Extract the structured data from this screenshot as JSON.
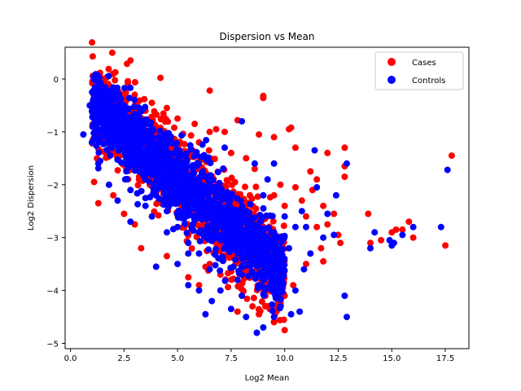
{
  "chart_data": {
    "type": "scatter",
    "title": "Dispersion vs Mean",
    "xlabel": "Log2 Mean",
    "ylabel": "Log2 Dispersion",
    "xlim": [
      -0.25,
      18.6
    ],
    "ylim": [
      -5.1,
      0.6
    ],
    "xticks": [
      0,
      2.5,
      5,
      7.5,
      10,
      12.5,
      15,
      17.5
    ],
    "xtick_labels": [
      "0.0",
      "2.5",
      "5.0",
      "7.5",
      "10.0",
      "12.5",
      "15.0",
      "17.5"
    ],
    "yticks": [
      0,
      -1,
      -2,
      -3,
      -4,
      -5
    ],
    "ytick_labels": [
      "0",
      "−1",
      "−2",
      "−3",
      "−4",
      "−5"
    ],
    "grid": false,
    "legend": {
      "position": "top-right",
      "entries": [
        "Cases",
        "Controls"
      ]
    },
    "series": [
      {
        "name": "Cases",
        "color": "#ff0000",
        "points": [
          [
            2.8,
            0.35
          ],
          [
            4.2,
            0.02
          ],
          [
            6.5,
            -0.22
          ],
          [
            9.0,
            -0.32
          ],
          [
            9.0,
            -0.36
          ],
          [
            7.8,
            -0.78
          ],
          [
            10.2,
            -0.95
          ],
          [
            10.3,
            -0.92
          ],
          [
            8.8,
            -1.05
          ],
          [
            9.5,
            -1.1
          ],
          [
            6.5,
            -1.0
          ],
          [
            6.8,
            -0.95
          ],
          [
            7.2,
            -1.0
          ],
          [
            5.8,
            -0.85
          ],
          [
            5.0,
            -0.75
          ],
          [
            4.5,
            -0.55
          ],
          [
            3.8,
            -0.45
          ],
          [
            3.0,
            -0.3
          ],
          [
            3.5,
            -0.6
          ],
          [
            6.0,
            -1.2
          ],
          [
            7.5,
            -1.4
          ],
          [
            8.2,
            -1.5
          ],
          [
            8.6,
            -1.7
          ],
          [
            10.5,
            -1.3
          ],
          [
            11.2,
            -1.75
          ],
          [
            12.0,
            -1.4
          ],
          [
            12.8,
            -1.3
          ],
          [
            12.8,
            -1.65
          ],
          [
            12.8,
            -1.85
          ],
          [
            11.5,
            -1.9
          ],
          [
            11.3,
            -2.1
          ],
          [
            10.5,
            -2.05
          ],
          [
            9.8,
            -2.0
          ],
          [
            9.5,
            -2.2
          ],
          [
            10.0,
            -2.4
          ],
          [
            10.8,
            -2.3
          ],
          [
            11.8,
            -2.4
          ],
          [
            12.3,
            -2.55
          ],
          [
            12.0,
            -2.75
          ],
          [
            11.5,
            -2.8
          ],
          [
            11.0,
            -2.6
          ],
          [
            12.5,
            -2.95
          ],
          [
            12.6,
            -3.1
          ],
          [
            11.7,
            -3.2
          ],
          [
            11.8,
            -3.45
          ],
          [
            11.0,
            -3.5
          ],
          [
            10.4,
            -3.9
          ],
          [
            10.0,
            -4.1
          ],
          [
            9.7,
            -4.2
          ],
          [
            9.3,
            -4.35
          ],
          [
            8.8,
            -4.45
          ],
          [
            9.5,
            -4.6
          ],
          [
            10.0,
            -4.75
          ],
          [
            8.5,
            -4.3
          ],
          [
            7.8,
            -4.4
          ],
          [
            13.9,
            -2.55
          ],
          [
            14.0,
            -3.1
          ],
          [
            14.5,
            -3.05
          ],
          [
            15.0,
            -2.9
          ],
          [
            15.2,
            -2.85
          ],
          [
            15.5,
            -2.85
          ],
          [
            15.8,
            -2.7
          ],
          [
            16.0,
            -3.0
          ],
          [
            17.8,
            -1.45
          ],
          [
            17.5,
            -3.15
          ],
          [
            1.3,
            -2.35
          ],
          [
            3.3,
            -3.2
          ],
          [
            4.5,
            -3.35
          ],
          [
            5.5,
            -3.75
          ],
          [
            6.0,
            -3.9
          ],
          [
            6.5,
            -3.5
          ],
          [
            7.0,
            -3.7
          ],
          [
            8.0,
            -3.3
          ],
          [
            8.8,
            -3.05
          ],
          [
            9.2,
            -2.6
          ],
          [
            8.5,
            -2.4
          ],
          [
            7.5,
            -2.7
          ],
          [
            2.5,
            -1.6
          ],
          [
            3.2,
            -1.9
          ],
          [
            4.0,
            -2.2
          ],
          [
            5.2,
            -2.5
          ],
          [
            6.2,
            -2.8
          ],
          [
            2.0,
            -2.2
          ],
          [
            2.5,
            -2.55
          ],
          [
            3.0,
            -2.75
          ]
        ]
      },
      {
        "name": "Controls",
        "color": "#0000ff",
        "points": [
          [
            0.6,
            -1.05
          ],
          [
            0.9,
            -0.5
          ],
          [
            1.2,
            -0.3
          ],
          [
            1.5,
            -0.2
          ],
          [
            1.8,
            -0.35
          ],
          [
            1.0,
            -1.2
          ],
          [
            1.3,
            -1.6
          ],
          [
            1.8,
            -2.0
          ],
          [
            2.2,
            -2.3
          ],
          [
            2.8,
            -2.7
          ],
          [
            8.0,
            -0.8
          ],
          [
            11.4,
            -1.35
          ],
          [
            12.9,
            -1.6
          ],
          [
            11.5,
            -2.05
          ],
          [
            12.4,
            -2.2
          ],
          [
            12.0,
            -2.55
          ],
          [
            12.3,
            -2.95
          ],
          [
            11.8,
            -3.0
          ],
          [
            11.2,
            -3.3
          ],
          [
            10.9,
            -3.6
          ],
          [
            10.5,
            -4.0
          ],
          [
            10.7,
            -4.4
          ],
          [
            10.3,
            -4.45
          ],
          [
            9.8,
            -4.3
          ],
          [
            9.5,
            -4.5
          ],
          [
            8.7,
            -4.8
          ],
          [
            9.0,
            -4.7
          ],
          [
            8.2,
            -4.5
          ],
          [
            7.5,
            -4.35
          ],
          [
            6.3,
            -4.45
          ],
          [
            12.8,
            -4.1
          ],
          [
            12.9,
            -4.5
          ],
          [
            14.0,
            -3.2
          ],
          [
            14.2,
            -2.9
          ],
          [
            14.9,
            -3.05
          ],
          [
            15.0,
            -3.15
          ],
          [
            15.1,
            -3.1
          ],
          [
            15.5,
            -2.95
          ],
          [
            16.0,
            -2.8
          ],
          [
            17.3,
            -2.8
          ],
          [
            17.6,
            -1.72
          ],
          [
            4.0,
            -3.55
          ],
          [
            5.0,
            -3.5
          ],
          [
            5.5,
            -3.9
          ],
          [
            6.0,
            -4.0
          ],
          [
            6.6,
            -4.2
          ],
          [
            7.0,
            -4.0
          ],
          [
            7.8,
            -3.8
          ],
          [
            8.5,
            -3.5
          ],
          [
            9.2,
            -3.25
          ],
          [
            9.5,
            -2.9
          ],
          [
            10.0,
            -2.6
          ],
          [
            9.0,
            -2.2
          ],
          [
            9.2,
            -1.9
          ],
          [
            9.5,
            -1.6
          ],
          [
            7.2,
            -1.3
          ],
          [
            8.6,
            -1.6
          ],
          [
            10.5,
            -2.8
          ],
          [
            10.8,
            -2.5
          ],
          [
            10.2,
            -3.2
          ],
          [
            11.0,
            -2.8
          ],
          [
            9.8,
            -3.6
          ],
          [
            8.8,
            -3.9
          ],
          [
            8.0,
            -4.1
          ],
          [
            2.5,
            -0.5
          ],
          [
            3.0,
            -0.8
          ],
          [
            3.5,
            -1.1
          ],
          [
            4.0,
            -1.3
          ],
          [
            4.5,
            -1.6
          ],
          [
            5.0,
            -1.9
          ],
          [
            5.5,
            -2.2
          ],
          [
            6.0,
            -2.5
          ],
          [
            6.5,
            -2.8
          ],
          [
            7.0,
            -3.0
          ],
          [
            7.5,
            -3.2
          ],
          [
            8.0,
            -3.4
          ],
          [
            2.0,
            -1.0
          ],
          [
            2.5,
            -1.3
          ],
          [
            3.0,
            -1.6
          ],
          [
            3.5,
            -1.9
          ],
          [
            4.0,
            -2.2
          ],
          [
            4.5,
            -2.5
          ],
          [
            5.0,
            -2.8
          ],
          [
            5.5,
            -3.1
          ],
          [
            6.0,
            -3.3
          ],
          [
            1.5,
            -0.7
          ],
          [
            2.0,
            -0.6
          ],
          [
            3.0,
            -1.1
          ],
          [
            4.0,
            -1.8
          ],
          [
            5.0,
            -2.3
          ],
          [
            6.0,
            -2.9
          ],
          [
            7.0,
            -3.4
          ],
          [
            8.0,
            -3.7
          ],
          [
            9.0,
            -3.7
          ],
          [
            6.5,
            -3.6
          ],
          [
            3.5,
            -2.4
          ],
          [
            4.5,
            -2.9
          ],
          [
            5.5,
            -3.3
          ],
          [
            2.8,
            -2.1
          ],
          [
            3.8,
            -2.6
          ]
        ]
      }
    ]
  }
}
